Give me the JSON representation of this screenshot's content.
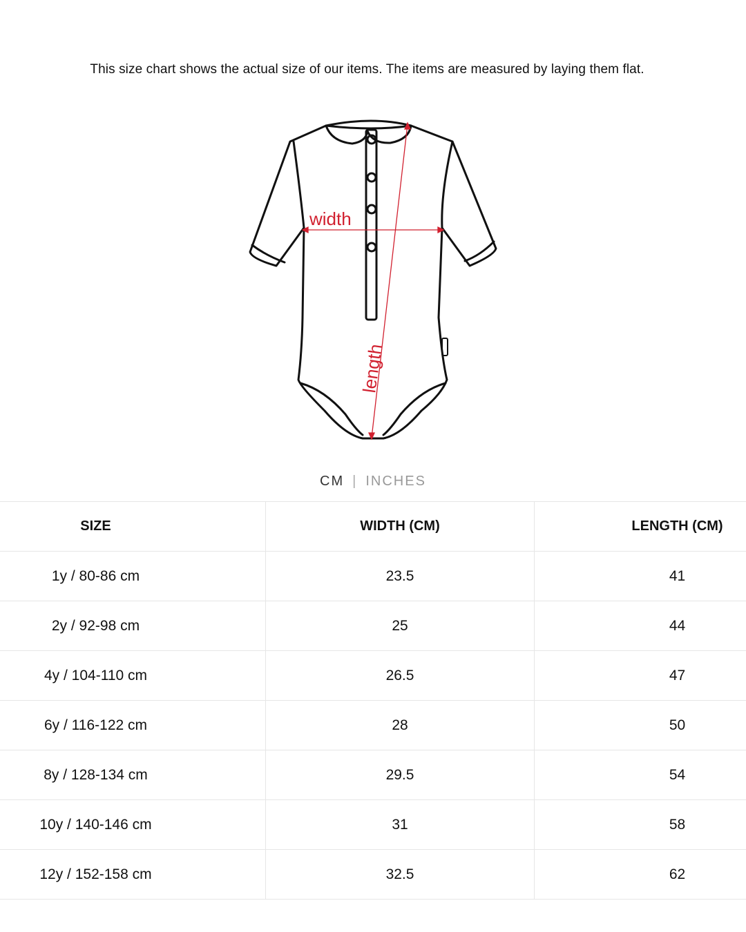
{
  "intro_text": "This size chart shows the actual size of our items. The items are measured by laying them flat.",
  "diagram": {
    "width_label": "width",
    "length_label": "length",
    "accent_color": "#d1202f"
  },
  "unit_toggle": {
    "active": "CM",
    "inactive": "INCHES",
    "separator": "|"
  },
  "table": {
    "headers": [
      "SIZE",
      "WIDTH (CM)",
      "LENGTH (CM)"
    ],
    "rows": [
      [
        "1y / 80-86 cm",
        "23.5",
        "41"
      ],
      [
        "2y / 92-98 cm",
        "25",
        "44"
      ],
      [
        "4y / 104-110 cm",
        "26.5",
        "47"
      ],
      [
        "6y / 116-122 cm",
        "28",
        "50"
      ],
      [
        "8y / 128-134 cm",
        "29.5",
        "54"
      ],
      [
        "10y / 140-146 cm",
        "31",
        "58"
      ],
      [
        "12y / 152-158 cm",
        "32.5",
        "62"
      ]
    ]
  }
}
